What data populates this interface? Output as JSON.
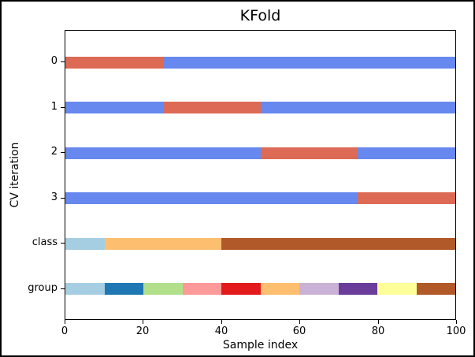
{
  "chart_data": {
    "type": "bar",
    "orientation": "horizontal_stacked",
    "title": "KFold",
    "xlabel": "Sample index",
    "ylabel": "CV iteration",
    "xlim": [
      0,
      100
    ],
    "x_ticks": [
      0,
      20,
      40,
      60,
      80,
      100
    ],
    "n_splits": 4,
    "n_samples": 100,
    "grid": false,
    "legend_position": "none",
    "colors": {
      "cv_train": "#6788ee",
      "cv_test": "#dd6a55",
      "paired_palette": [
        "#a6cee3",
        "#1f78b4",
        "#b2df8a",
        "#fb9a99",
        "#e31a1c",
        "#fdbf6f",
        "#cab2d6",
        "#6a3d9a",
        "#ffff99",
        "#b15928"
      ]
    },
    "rows": [
      {
        "label": "0",
        "role": "cv-iteration",
        "segments": [
          {
            "from": 0,
            "to": 25,
            "color": "#dd6a55",
            "role": "test"
          },
          {
            "from": 25,
            "to": 100,
            "color": "#6788ee",
            "role": "train"
          }
        ]
      },
      {
        "label": "1",
        "role": "cv-iteration",
        "segments": [
          {
            "from": 0,
            "to": 25,
            "color": "#6788ee",
            "role": "train"
          },
          {
            "from": 25,
            "to": 50,
            "color": "#dd6a55",
            "role": "test"
          },
          {
            "from": 50,
            "to": 100,
            "color": "#6788ee",
            "role": "train"
          }
        ]
      },
      {
        "label": "2",
        "role": "cv-iteration",
        "segments": [
          {
            "from": 0,
            "to": 50,
            "color": "#6788ee",
            "role": "train"
          },
          {
            "from": 50,
            "to": 75,
            "color": "#dd6a55",
            "role": "test"
          },
          {
            "from": 75,
            "to": 100,
            "color": "#6788ee",
            "role": "train"
          }
        ]
      },
      {
        "label": "3",
        "role": "cv-iteration",
        "segments": [
          {
            "from": 0,
            "to": 75,
            "color": "#6788ee",
            "role": "train"
          },
          {
            "from": 75,
            "to": 100,
            "color": "#dd6a55",
            "role": "test"
          }
        ]
      },
      {
        "label": "class",
        "role": "class-distribution",
        "segments": [
          {
            "from": 0,
            "to": 10,
            "color": "#a6cee3",
            "role": "class-0"
          },
          {
            "from": 10,
            "to": 40,
            "color": "#fdbf6f",
            "role": "class-1"
          },
          {
            "from": 40,
            "to": 100,
            "color": "#b15928",
            "role": "class-2"
          }
        ]
      },
      {
        "label": "group",
        "role": "group-distribution",
        "segments": [
          {
            "from": 0,
            "to": 10,
            "color": "#a6cee3",
            "role": "group-0"
          },
          {
            "from": 10,
            "to": 20,
            "color": "#1f78b4",
            "role": "group-1"
          },
          {
            "from": 20,
            "to": 30,
            "color": "#b2df8a",
            "role": "group-2"
          },
          {
            "from": 30,
            "to": 40,
            "color": "#fb9a99",
            "role": "group-3"
          },
          {
            "from": 40,
            "to": 50,
            "color": "#e31a1c",
            "role": "group-4"
          },
          {
            "from": 50,
            "to": 60,
            "color": "#fdbf6f",
            "role": "group-5"
          },
          {
            "from": 60,
            "to": 70,
            "color": "#cab2d6",
            "role": "group-6"
          },
          {
            "from": 70,
            "to": 80,
            "color": "#6a3d9a",
            "role": "group-7"
          },
          {
            "from": 80,
            "to": 90,
            "color": "#ffff99",
            "role": "group-8"
          },
          {
            "from": 90,
            "to": 100,
            "color": "#b15928",
            "role": "group-9"
          }
        ]
      }
    ]
  }
}
